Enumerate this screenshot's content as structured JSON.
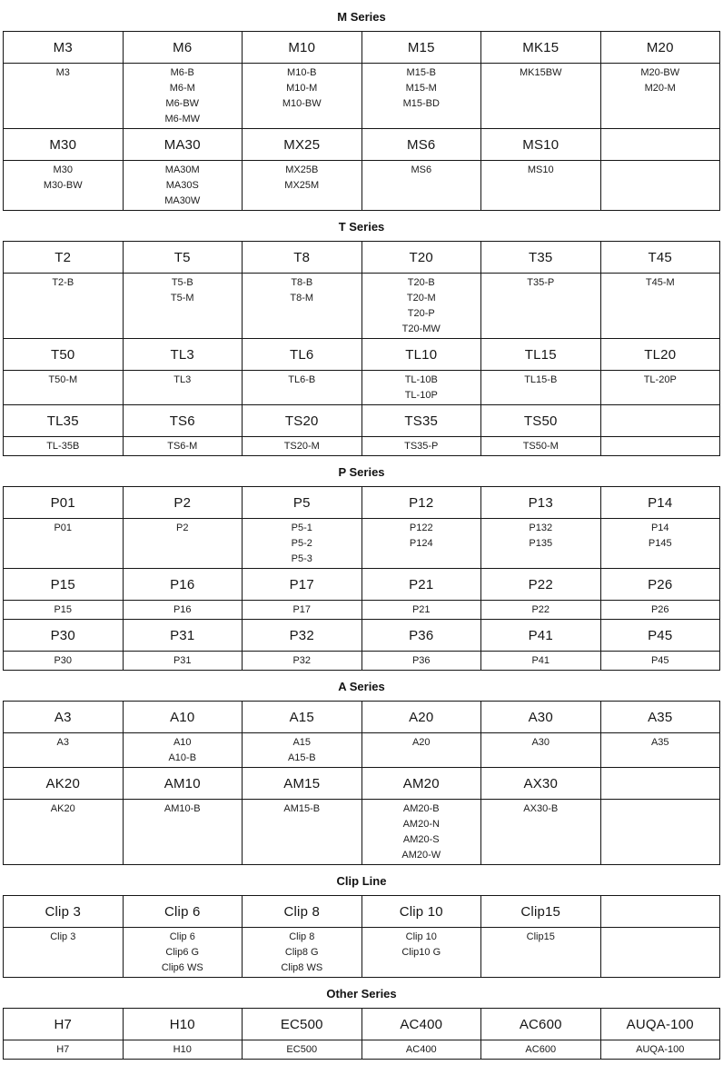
{
  "document": {
    "colors": {
      "background": "#ffffff",
      "text": "#1a1a1a",
      "border": "#151515"
    },
    "columns_per_table": 6,
    "sections": [
      {
        "title": "M Series",
        "rows": [
          {
            "headers": [
              "M3",
              "M6",
              "M10",
              "M15",
              "MK15",
              "M20"
            ],
            "details": [
              [
                "M3"
              ],
              [
                "M6-B",
                "M6-M",
                "M6-BW",
                "M6-MW"
              ],
              [
                "M10-B",
                "M10-M",
                "M10-BW"
              ],
              [
                "M15-B",
                "M15-M",
                "M15-BD"
              ],
              [
                "MK15BW"
              ],
              [
                "M20-BW",
                "M20-M"
              ]
            ]
          },
          {
            "headers": [
              "M30",
              "MA30",
              "MX25",
              "MS6",
              "MS10",
              ""
            ],
            "details": [
              [
                "M30",
                "M30-BW"
              ],
              [
                "MA30M",
                "MA30S",
                "MA30W"
              ],
              [
                "MX25B",
                "MX25M"
              ],
              [
                "MS6"
              ],
              [
                "MS10"
              ],
              []
            ]
          }
        ]
      },
      {
        "title": "T Series",
        "rows": [
          {
            "headers": [
              "T2",
              "T5",
              "T8",
              "T20",
              "T35",
              "T45"
            ],
            "details": [
              [
                "T2-B"
              ],
              [
                "T5-B",
                "T5-M"
              ],
              [
                "T8-B",
                "T8-M"
              ],
              [
                "T20-B",
                "T20-M",
                "T20-P",
                "T20-MW"
              ],
              [
                "T35-P"
              ],
              [
                "T45-M"
              ]
            ]
          },
          {
            "headers": [
              "T50",
              "TL3",
              "TL6",
              "TL10",
              "TL15",
              "TL20"
            ],
            "details": [
              [
                "T50-M"
              ],
              [
                "TL3"
              ],
              [
                "TL6-B"
              ],
              [
                "TL-10B",
                "TL-10P"
              ],
              [
                "TL15-B"
              ],
              [
                "TL-20P"
              ]
            ]
          },
          {
            "headers": [
              "TL35",
              "TS6",
              "TS20",
              "TS35",
              "TS50",
              ""
            ],
            "details": [
              [
                "TL-35B"
              ],
              [
                "TS6-M"
              ],
              [
                "TS20-M"
              ],
              [
                "TS35-P"
              ],
              [
                "TS50-M"
              ],
              []
            ]
          }
        ]
      },
      {
        "title": "P Series",
        "rows": [
          {
            "headers": [
              "P01",
              "P2",
              "P5",
              "P12",
              "P13",
              "P14"
            ],
            "details": [
              [
                "P01"
              ],
              [
                "P2"
              ],
              [
                "P5-1",
                "P5-2",
                "P5-3"
              ],
              [
                "P122",
                "P124"
              ],
              [
                "P132",
                "P135"
              ],
              [
                "P14",
                "P145"
              ]
            ]
          },
          {
            "headers": [
              "P15",
              "P16",
              "P17",
              "P21",
              "P22",
              "P26"
            ],
            "details": [
              [
                "P15"
              ],
              [
                "P16"
              ],
              [
                "P17"
              ],
              [
                "P21"
              ],
              [
                "P22"
              ],
              [
                "P26"
              ]
            ]
          },
          {
            "headers": [
              "P30",
              "P31",
              "P32",
              "P36",
              "P41",
              "P45"
            ],
            "details": [
              [
                "P30"
              ],
              [
                "P31"
              ],
              [
                "P32"
              ],
              [
                "P36"
              ],
              [
                "P41"
              ],
              [
                "P45"
              ]
            ]
          }
        ]
      },
      {
        "title": "A Series",
        "rows": [
          {
            "headers": [
              "A3",
              "A10",
              "A15",
              "A20",
              "A30",
              "A35"
            ],
            "details": [
              [
                "A3"
              ],
              [
                "A10",
                "A10-B"
              ],
              [
                "A15",
                "A15-B"
              ],
              [
                "A20"
              ],
              [
                "A30"
              ],
              [
                "A35"
              ]
            ]
          },
          {
            "headers": [
              "AK20",
              "AM10",
              "AM15",
              "AM20",
              "AX30",
              ""
            ],
            "details": [
              [
                "AK20"
              ],
              [
                "AM10-B"
              ],
              [
                "AM15-B"
              ],
              [
                "AM20-B",
                "AM20-N",
                "AM20-S",
                "AM20-W"
              ],
              [
                "AX30-B"
              ],
              []
            ]
          }
        ]
      },
      {
        "title": "Clip Line",
        "rows": [
          {
            "headers": [
              "Clip 3",
              "Clip 6",
              "Clip 8",
              "Clip 10",
              "Clip15",
              ""
            ],
            "details": [
              [
                "Clip 3"
              ],
              [
                "Clip 6",
                "Clip6 G",
                "Clip6 WS"
              ],
              [
                "Clip 8",
                "Clip8 G",
                "Clip8 WS"
              ],
              [
                "Clip 10",
                "Clip10 G"
              ],
              [
                "Clip15"
              ],
              []
            ]
          }
        ]
      },
      {
        "title": "Other Series",
        "rows": [
          {
            "headers": [
              "H7",
              "H10",
              "EC500",
              "AC400",
              "AC600",
              "AUQA-100"
            ],
            "details": [
              [
                "H7"
              ],
              [
                "H10"
              ],
              [
                "EC500"
              ],
              [
                "AC400"
              ],
              [
                "AC600"
              ],
              [
                "AUQA-100"
              ]
            ]
          }
        ]
      }
    ]
  }
}
